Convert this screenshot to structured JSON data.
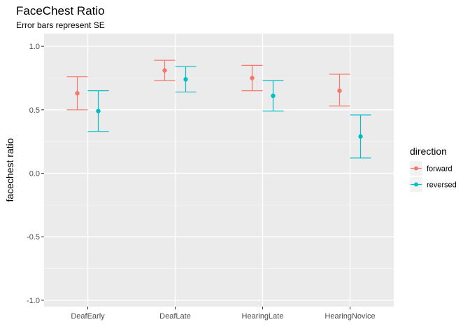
{
  "chart_data": {
    "type": "scatter",
    "title": "FaceChest Ratio",
    "subtitle": "Error bars represent SE",
    "xlabel": "",
    "ylabel": "facechest ratio",
    "ylim": [
      -1.05,
      1.1
    ],
    "yticks": [
      -1.0,
      -0.5,
      0.0,
      0.5,
      1.0
    ],
    "ytick_labels": [
      "-1.0",
      "-0.5",
      "0.0",
      "0.5",
      "1.0"
    ],
    "categories": [
      "DeafEarly",
      "DeafLate",
      "HearingLate",
      "HearingNovice"
    ],
    "grid": true,
    "legend": {
      "title": "direction",
      "position": "right"
    },
    "series": [
      {
        "name": "forward",
        "color": "#F8766D",
        "values": [
          0.63,
          0.81,
          0.75,
          0.65
        ],
        "lower": [
          0.5,
          0.73,
          0.65,
          0.53
        ],
        "upper": [
          0.76,
          0.89,
          0.85,
          0.78
        ]
      },
      {
        "name": "reversed",
        "color": "#00BFC4",
        "values": [
          0.49,
          0.74,
          0.61,
          0.29
        ],
        "lower": [
          0.33,
          0.64,
          0.49,
          0.12
        ],
        "upper": [
          0.65,
          0.84,
          0.73,
          0.46
        ]
      }
    ]
  }
}
